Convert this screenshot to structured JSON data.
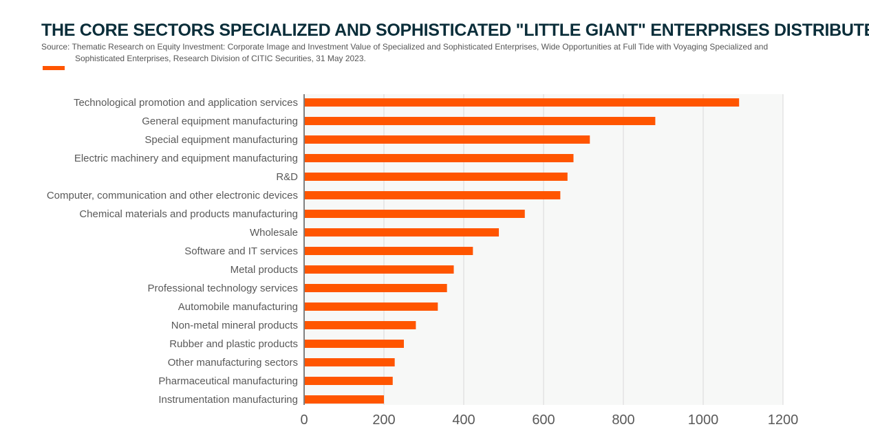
{
  "title": "THE CORE SECTORS SPECIALIZED AND SOPHISTICATED \"LITTLE GIANT\" ENTERPRISES DISTRIBUTED",
  "source_line1": "Source: Thematic Research on Equity Investment: Corporate Image and Investment Value of Specialized and Sophisticated Enterprises, Wide Opportunities at Full Tide with Voyaging Specialized and",
  "source_line2": "Sophisticated Enterprises, Research Division of CITIC Securities, 31 May 2023.",
  "colors": {
    "bar": "#ff5500",
    "title": "#0b2e3a",
    "plot_bg": "#f7f8f7",
    "grid": "#d9d9d9"
  },
  "chart_data": {
    "type": "bar",
    "orientation": "horizontal",
    "categories": [
      "Technological promotion and application services",
      "General equipment manufacturing",
      "Special equipment manufacturing",
      "Electric machinery and equipment manufacturing",
      "R&D",
      "Computer, communication and other electronic devices",
      "Chemical materials and products manufacturing",
      "Wholesale",
      "Software and IT services",
      "Metal products",
      "Professional technology services",
      "Automobile manufacturing",
      "Non-metal mineral products",
      "Rubber and plastic products",
      "Other manufacturing sectors",
      "Pharmaceutical manufacturing",
      "Instrumentation manufacturing"
    ],
    "values": [
      1090,
      880,
      716,
      675,
      660,
      642,
      553,
      488,
      423,
      375,
      358,
      335,
      280,
      250,
      227,
      222,
      200
    ],
    "xlim": [
      0,
      1200
    ],
    "xticks": [
      "0",
      "200",
      "400",
      "600",
      "800",
      "1000",
      "1200"
    ],
    "xtick_values": [
      0,
      200,
      400,
      600,
      800,
      1000,
      1200
    ],
    "grid": "vertical",
    "legend": "top-left"
  }
}
